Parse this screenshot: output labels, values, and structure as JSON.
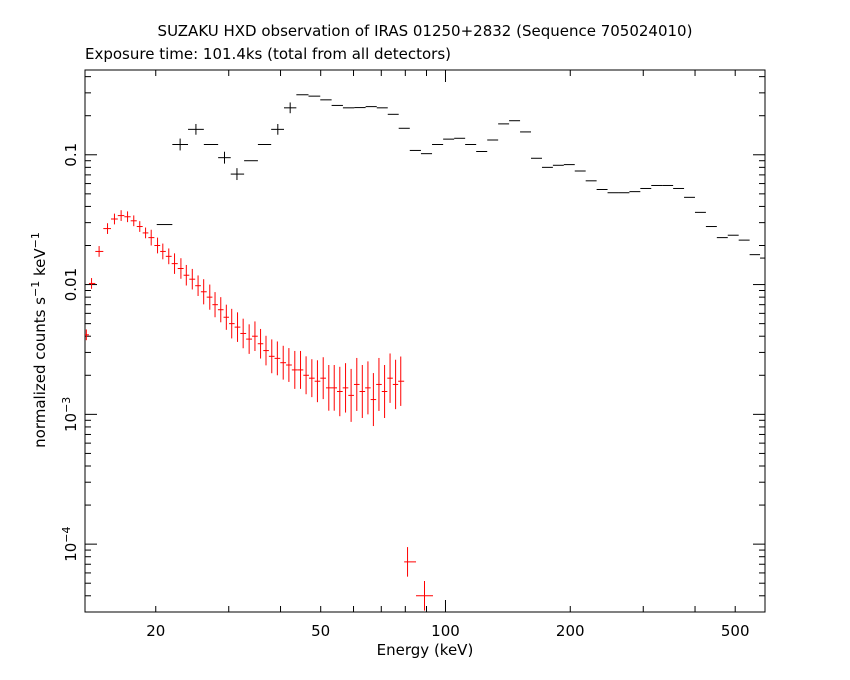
{
  "chart_data": {
    "type": "scatter",
    "title": "SUZAKU HXD observation of IRAS 01250+2832 (Sequence 705024010)",
    "subtitle": "Exposure time: 101.4ks (total from all detectors)",
    "xlabel": "Energy (keV)",
    "ylabel_parts": {
      "prefix": "normalized counts s",
      "exp1": "−1",
      "mid": " keV",
      "exp2": "−1"
    },
    "xscale": "log",
    "yscale": "log",
    "xlim": [
      13.5,
      590
    ],
    "ylim": [
      3e-05,
      0.45
    ],
    "x_ticks": [
      {
        "value": 20,
        "label": "20"
      },
      {
        "value": 50,
        "label": "50"
      },
      {
        "value": 100,
        "label": "100"
      },
      {
        "value": 200,
        "label": "200"
      },
      {
        "value": 500,
        "label": "500"
      }
    ],
    "y_ticks": [
      {
        "value": 0.1,
        "base": "0.1",
        "exp": ""
      },
      {
        "value": 0.01,
        "base": "0.01",
        "exp": ""
      },
      {
        "value": 0.001,
        "base": "10",
        "exp": "−3"
      },
      {
        "value": 0.0001,
        "base": "10",
        "exp": "−4"
      }
    ],
    "grid": false,
    "series": [
      {
        "color": "#000000",
        "points": [
          [
            21.0,
            0.029,
            1.0
          ],
          [
            22.9,
            0.12,
            0.9
          ],
          [
            25.0,
            0.157,
            1.1
          ],
          [
            27.3,
            0.12,
            1.0
          ],
          [
            29.3,
            0.095,
            0.9
          ],
          [
            31.4,
            0.071,
            0.9
          ],
          [
            34.0,
            0.09,
            1.0
          ],
          [
            36.6,
            0.12,
            1.0
          ],
          [
            39.4,
            0.157,
            1.1
          ],
          [
            42.2,
            0.23,
            1.1
          ],
          [
            45.2,
            0.29,
            1.0
          ],
          [
            48.3,
            0.283,
            1.0
          ],
          [
            51.5,
            0.265,
            1.0
          ],
          [
            54.8,
            0.24,
            1.0
          ],
          [
            58.4,
            0.23,
            1.0
          ],
          [
            62.2,
            0.231,
            1.0
          ],
          [
            66.2,
            0.235,
            1.0
          ],
          [
            70.4,
            0.23,
            1.0
          ],
          [
            74.8,
            0.205,
            1.0
          ],
          [
            79.5,
            0.16,
            1.0
          ],
          [
            84.6,
            0.108,
            1.0
          ],
          [
            90.0,
            0.102,
            1.0
          ],
          [
            95.7,
            0.12,
            1.0
          ],
          [
            101.8,
            0.132,
            1.0
          ],
          [
            108.2,
            0.134,
            1.0
          ],
          [
            115.0,
            0.12,
            1.0
          ],
          [
            122.3,
            0.106,
            1.0
          ],
          [
            130.0,
            0.13,
            1.0
          ],
          [
            138.1,
            0.173,
            1.0
          ],
          [
            146.8,
            0.183,
            1.0
          ],
          [
            156.0,
            0.15,
            1.0
          ],
          [
            165.8,
            0.094,
            1.0
          ],
          [
            176.2,
            0.08,
            1.0
          ],
          [
            187.2,
            0.083,
            1.0
          ],
          [
            198.9,
            0.084,
            1.0
          ],
          [
            211.4,
            0.075,
            1.0
          ],
          [
            224.6,
            0.063,
            1.0
          ],
          [
            238.7,
            0.054,
            1.0
          ],
          [
            253.6,
            0.051,
            1.0
          ],
          [
            269.5,
            0.051,
            1.0
          ],
          [
            286.3,
            0.052,
            1.0
          ],
          [
            304.3,
            0.055,
            1.0
          ],
          [
            323.3,
            0.058,
            1.0
          ],
          [
            343.6,
            0.058,
            1.0
          ],
          [
            365.1,
            0.055,
            1.0
          ],
          [
            387.9,
            0.047,
            1.0
          ],
          [
            412.2,
            0.036,
            1.0
          ],
          [
            438.0,
            0.028,
            1.0
          ],
          [
            465.4,
            0.023,
            1.0
          ],
          [
            494.5,
            0.024,
            1.0
          ],
          [
            525.5,
            0.022,
            1.0
          ],
          [
            558.4,
            0.017,
            1.0
          ],
          [
            590.0,
            0.016,
            1.0
          ]
        ]
      },
      {
        "color": "#ff0000",
        "points": [
          [
            13.6,
            0.0041,
            1.1
          ],
          [
            14.0,
            0.0102,
            1.1
          ],
          [
            14.6,
            0.018,
            1.1
          ],
          [
            15.3,
            0.027,
            1.1
          ],
          [
            15.9,
            0.032,
            1.1
          ],
          [
            16.5,
            0.034,
            1.1
          ],
          [
            17.1,
            0.0333,
            1.1
          ],
          [
            17.7,
            0.031,
            1.1
          ],
          [
            18.3,
            0.028,
            1.1
          ],
          [
            18.9,
            0.025,
            1.1
          ],
          [
            19.5,
            0.023,
            1.15
          ],
          [
            20.2,
            0.02,
            1.15
          ],
          [
            20.8,
            0.018,
            1.15
          ],
          [
            21.5,
            0.0165,
            1.15
          ],
          [
            22.2,
            0.0145,
            1.2
          ],
          [
            23.0,
            0.0133,
            1.2
          ],
          [
            23.7,
            0.0118,
            1.2
          ],
          [
            24.5,
            0.011,
            1.2
          ],
          [
            25.3,
            0.0098,
            1.2
          ],
          [
            26.1,
            0.0088,
            1.25
          ],
          [
            27.0,
            0.008,
            1.25
          ],
          [
            27.8,
            0.007,
            1.25
          ],
          [
            28.7,
            0.0064,
            1.25
          ],
          [
            29.6,
            0.0056,
            1.25
          ],
          [
            30.5,
            0.005,
            1.3
          ],
          [
            31.5,
            0.0047,
            1.3
          ],
          [
            32.5,
            0.0042,
            1.3
          ],
          [
            33.6,
            0.0038,
            1.3
          ],
          [
            34.7,
            0.004,
            1.3
          ],
          [
            35.8,
            0.0035,
            1.3
          ],
          [
            36.9,
            0.0031,
            1.3
          ],
          [
            38.1,
            0.0028,
            1.35
          ],
          [
            39.3,
            0.0027,
            1.35
          ],
          [
            40.6,
            0.0025,
            1.35
          ],
          [
            41.9,
            0.0024,
            1.35
          ],
          [
            43.3,
            0.0022,
            1.4
          ],
          [
            44.7,
            0.0022,
            1.4
          ],
          [
            46.1,
            0.002,
            1.4
          ],
          [
            47.6,
            0.0019,
            1.4
          ],
          [
            49.1,
            0.0018,
            1.45
          ],
          [
            50.7,
            0.0019,
            1.45
          ],
          [
            52.3,
            0.0016,
            1.5
          ],
          [
            53.9,
            0.0016,
            1.5
          ],
          [
            55.6,
            0.0015,
            1.55
          ],
          [
            57.4,
            0.0016,
            1.55
          ],
          [
            59.2,
            0.0014,
            1.6
          ],
          [
            61.1,
            0.0017,
            1.6
          ],
          [
            63.0,
            0.0015,
            1.6
          ],
          [
            65.0,
            0.0016,
            1.6
          ],
          [
            67.0,
            0.0013,
            1.6
          ],
          [
            69.1,
            0.0017,
            1.6
          ],
          [
            71.3,
            0.0015,
            1.6
          ],
          [
            73.5,
            0.0019,
            1.55
          ],
          [
            75.8,
            0.0017,
            1.55
          ],
          [
            78.0,
            0.0018,
            1.55
          ],
          [
            81.0,
            7.3e-05,
            1.3
          ],
          [
            89.0,
            4e-05,
            1.3
          ]
        ]
      }
    ]
  }
}
